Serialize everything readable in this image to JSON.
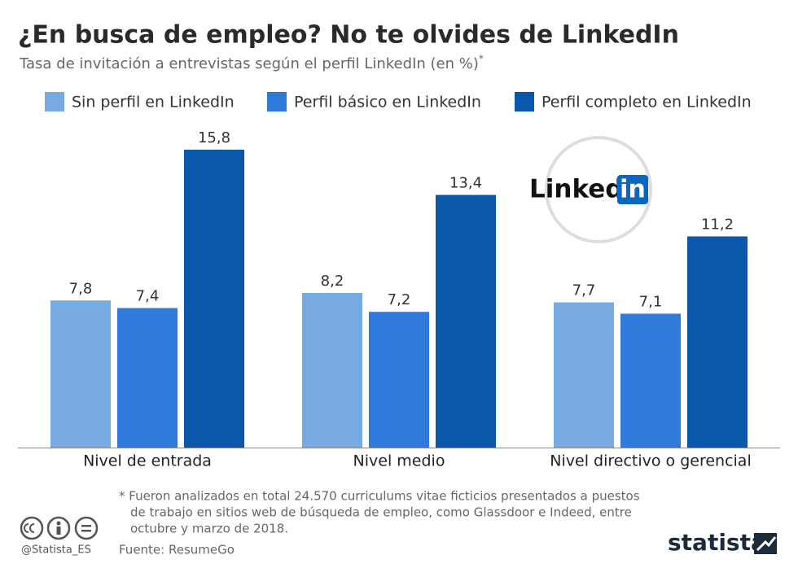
{
  "chart_data": {
    "type": "bar",
    "title": "¿En busca de empleo? No te olvides de LinkedIn",
    "subtitle": "Tasa de invitación a entrevistas según el perfil LinkedIn (en %)",
    "subtitle_mark": "*",
    "categories": [
      "Nivel de entrada",
      "Nivel medio",
      "Nivel directivo o gerencial"
    ],
    "series": [
      {
        "name": "Sin perfil en LinkedIn",
        "color": "#77a9e3",
        "values": [
          7.8,
          8.2,
          7.7
        ],
        "value_labels": [
          "7,8",
          "8,2",
          "7,7"
        ]
      },
      {
        "name": "Perfil básico en LinkedIn",
        "color": "#2f7bd9",
        "values": [
          7.4,
          7.2,
          7.1
        ],
        "value_labels": [
          "7,4",
          "7,2",
          "7,1"
        ]
      },
      {
        "name": "Perfil completo en LinkedIn",
        "color": "#0b57a9",
        "values": [
          15.8,
          13.4,
          11.2
        ],
        "value_labels": [
          "15,8",
          "13,4",
          "11,2"
        ]
      }
    ],
    "footnote_lines": [
      "* Fueron analizados en total 24.570 curriculums vitae ficticios presentados a puestos",
      "de trabajo en sitios web de búsqueda de empleo, como Glassdoor e Indeed, entre",
      "octubre y marzo de 2018."
    ],
    "source": "Fuente: ResumeGo",
    "handle": "@Statista_ES",
    "brand": "statista",
    "logo_left": "Linked",
    "logo_right": "in"
  }
}
